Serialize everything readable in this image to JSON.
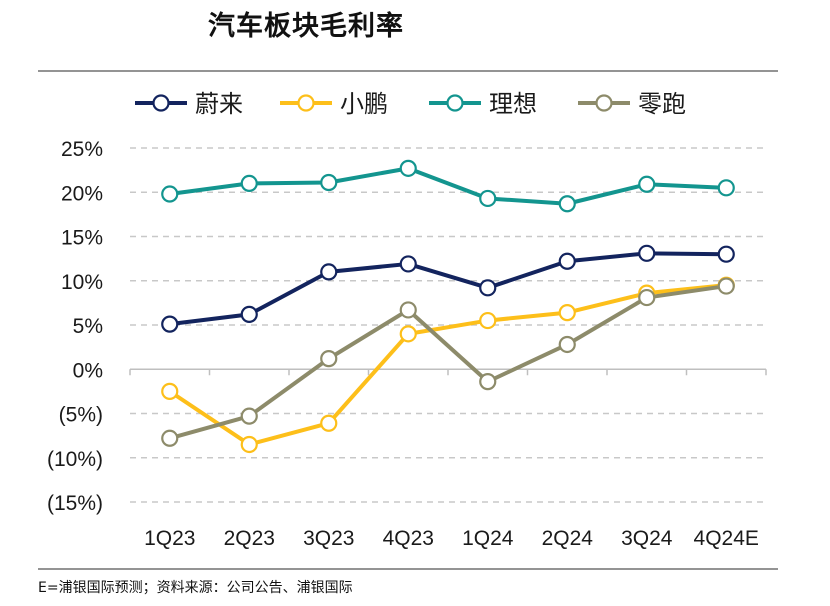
{
  "page": {
    "title": "汽车板块毛利率",
    "footnote": "E=浦银国际预测；资料来源：公司公告、浦银国际"
  },
  "chart_data": {
    "type": "line",
    "title": "汽车板块毛利率",
    "categories": [
      "1Q23",
      "2Q23",
      "3Q23",
      "4Q23",
      "1Q24",
      "2Q24",
      "3Q24",
      "4Q24E"
    ],
    "yticks": [
      "25%",
      "20%",
      "15%",
      "10%",
      "5%",
      "0%",
      "(5%)",
      "(10%)",
      "(15%)"
    ],
    "ylim": [
      -15,
      25
    ],
    "ystep": 5,
    "grid": true,
    "legend": "top",
    "series": [
      {
        "name": "蔚来",
        "color": "#13245e",
        "values": [
          5.1,
          6.2,
          11.0,
          11.9,
          9.2,
          12.2,
          13.1,
          13.0
        ]
      },
      {
        "name": "小鹏",
        "color": "#fdbf1a",
        "values": [
          -2.5,
          -8.5,
          -6.1,
          4.0,
          5.5,
          6.4,
          8.6,
          9.5
        ]
      },
      {
        "name": "理想",
        "color": "#13958f",
        "values": [
          19.8,
          21.0,
          21.1,
          22.7,
          19.3,
          18.7,
          20.9,
          20.5
        ]
      },
      {
        "name": "零跑",
        "color": "#8d8b6a",
        "values": [
          -7.8,
          -5.3,
          1.2,
          6.7,
          -1.4,
          2.8,
          8.1,
          9.4
        ]
      }
    ]
  }
}
